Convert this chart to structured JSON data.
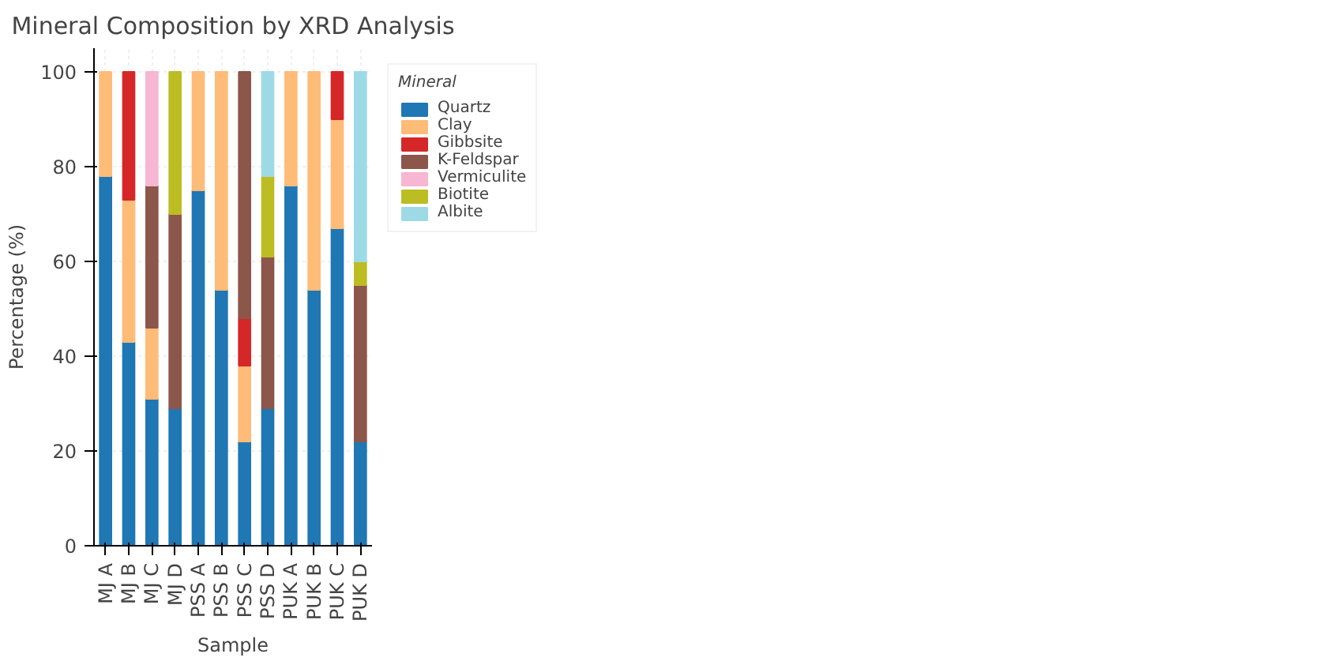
{
  "chart_data": {
    "type": "bar",
    "stacked": true,
    "title": "Mineral Composition by XRD Analysis",
    "xlabel": "Sample",
    "ylabel": "Percentage (%)",
    "legend_title": "Mineral",
    "legend": "top right",
    "grid": true,
    "ylim": [
      0,
      105
    ],
    "yticks": [
      0,
      20,
      40,
      60,
      80,
      100
    ],
    "categories": [
      "MJ A",
      "MJ B",
      "MJ C",
      "MJ D",
      "PSS A",
      "PSS B",
      "PSS C",
      "PSS D",
      "PUK A",
      "PUK B",
      "PUK C",
      "PUK D"
    ],
    "series": [
      {
        "name": "Quartz",
        "color": "#1f77b4",
        "values": [
          78,
          43,
          31,
          29,
          75,
          54,
          22,
          29,
          76,
          54,
          67,
          22
        ]
      },
      {
        "name": "Clay",
        "color": "#ffbb78",
        "values": [
          22,
          30,
          15,
          null,
          25,
          46,
          16,
          null,
          24,
          46,
          23,
          null
        ]
      },
      {
        "name": "Gibbsite",
        "color": "#d62728",
        "values": [
          null,
          27,
          null,
          null,
          null,
          null,
          10,
          null,
          null,
          null,
          10,
          null
        ]
      },
      {
        "name": "K-Feldspar",
        "color": "#8c564b",
        "values": [
          null,
          null,
          30,
          41,
          null,
          null,
          52,
          32,
          null,
          null,
          null,
          33
        ]
      },
      {
        "name": "Vermiculite",
        "color": "#f7b6d2",
        "values": [
          null,
          null,
          24,
          null,
          null,
          null,
          null,
          null,
          null,
          null,
          null,
          null
        ]
      },
      {
        "name": "Biotite",
        "color": "#bcbd22",
        "values": [
          null,
          null,
          null,
          30,
          null,
          null,
          null,
          17,
          null,
          null,
          null,
          5
        ]
      },
      {
        "name": "Albite",
        "color": "#9edae5",
        "values": [
          null,
          null,
          null,
          null,
          null,
          null,
          null,
          22,
          null,
          null,
          null,
          40
        ]
      }
    ]
  }
}
